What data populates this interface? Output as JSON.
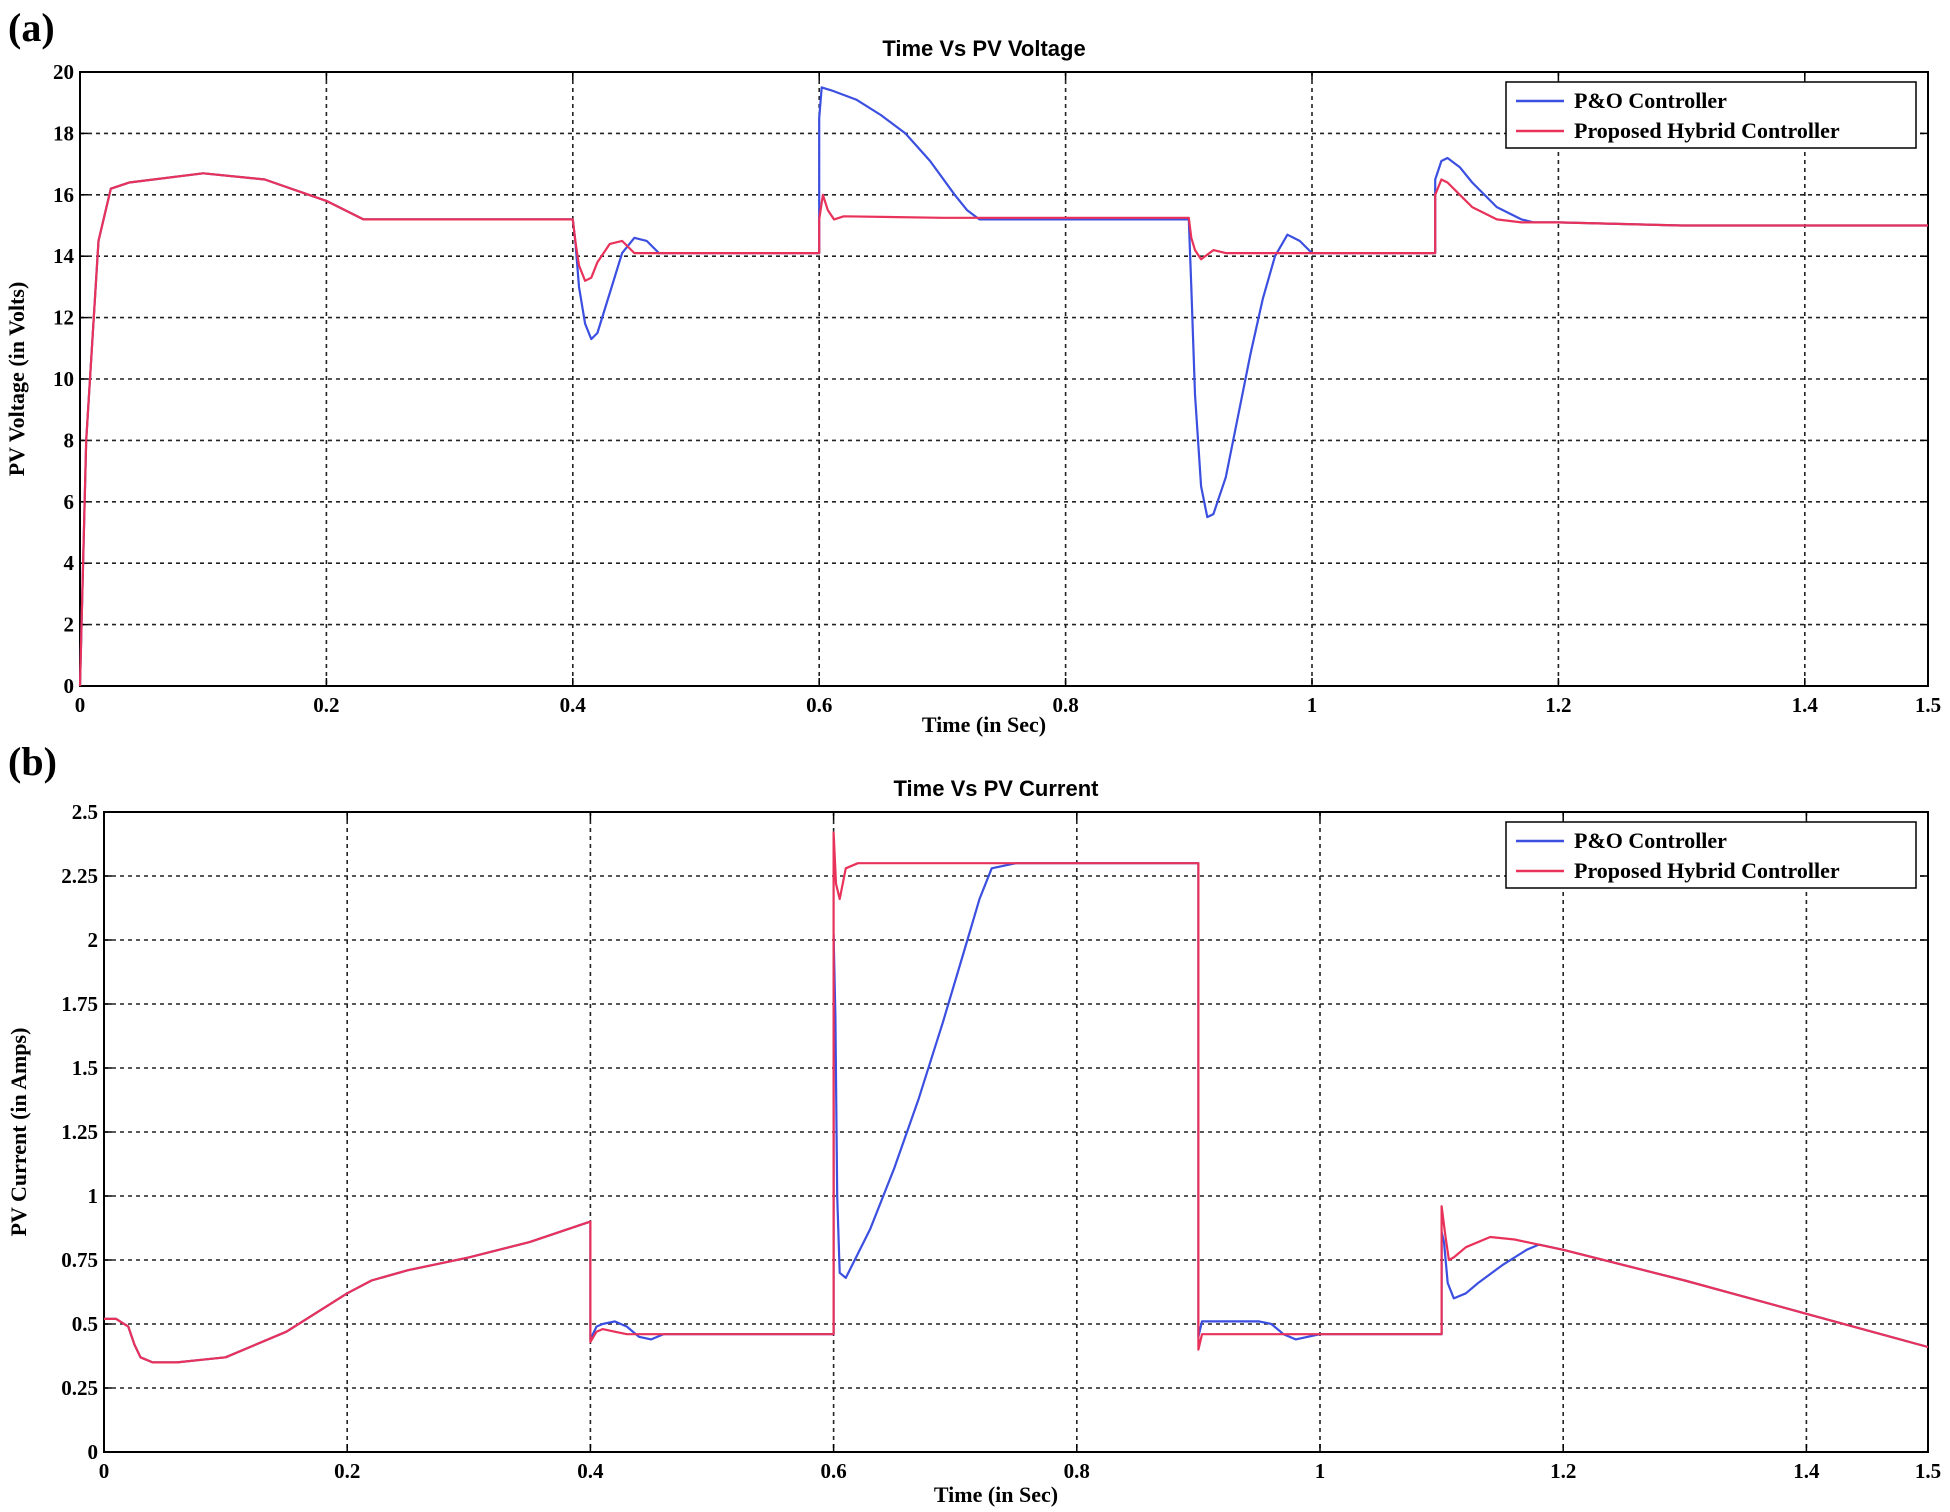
{
  "panels": {
    "a": "(a)",
    "b": "(b)"
  },
  "chart_data": [
    {
      "type": "line",
      "title": "Time Vs PV Voltage",
      "xlabel": "Time (in Sec)",
      "ylabel": "PV Voltage (in Volts)",
      "xlim": [
        0,
        1.5
      ],
      "ylim": [
        0,
        20
      ],
      "xticks": [
        0,
        0.2,
        0.4,
        0.6,
        0.8,
        1,
        1.2,
        1.4,
        1.5
      ],
      "xtick_labels": [
        "0",
        "0.2",
        "0.4",
        "0.6",
        "0.8",
        "1",
        "1.2",
        "1.4",
        "1.5"
      ],
      "yticks": [
        0,
        2,
        4,
        6,
        8,
        10,
        12,
        14,
        16,
        18,
        20
      ],
      "ytick_labels": [
        "0",
        "2",
        "4",
        "6",
        "8",
        "10",
        "12",
        "14",
        "16",
        "18",
        "20"
      ],
      "grid": true,
      "legend": "top-right",
      "series": [
        {
          "name": "P&O Controller",
          "color": "#3b4fe0",
          "x": [
            0,
            0.005,
            0.015,
            0.025,
            0.04,
            0.1,
            0.15,
            0.2,
            0.23,
            0.3,
            0.4,
            0.402,
            0.405,
            0.41,
            0.415,
            0.42,
            0.43,
            0.44,
            0.45,
            0.46,
            0.47,
            0.5,
            0.55,
            0.6,
            0.6,
            0.602,
            0.61,
            0.63,
            0.65,
            0.67,
            0.69,
            0.71,
            0.72,
            0.73,
            0.8,
            0.9,
            0.902,
            0.905,
            0.91,
            0.915,
            0.92,
            0.93,
            0.94,
            0.95,
            0.96,
            0.97,
            0.98,
            0.99,
            1.0,
            1.05,
            1.1,
            1.1,
            1.105,
            1.11,
            1.12,
            1.13,
            1.15,
            1.17,
            1.18,
            1.2,
            1.3,
            1.4,
            1.5
          ],
          "y": [
            0,
            8,
            14.5,
            16.2,
            16.4,
            16.7,
            16.5,
            15.8,
            15.2,
            15.2,
            15.2,
            14.5,
            13,
            11.8,
            11.3,
            11.5,
            12.8,
            14.1,
            14.6,
            14.5,
            14.1,
            14.1,
            14.1,
            14.1,
            18.5,
            19.5,
            19.4,
            19.1,
            18.6,
            18.0,
            17.1,
            16.0,
            15.5,
            15.2,
            15.2,
            15.2,
            13,
            9.5,
            6.5,
            5.5,
            5.6,
            6.8,
            8.8,
            10.8,
            12.6,
            14.0,
            14.7,
            14.5,
            14.1,
            14.1,
            14.1,
            16.5,
            17.1,
            17.2,
            16.9,
            16.4,
            15.6,
            15.2,
            15.1,
            15.1,
            15.0,
            15.0,
            15.0
          ]
        },
        {
          "name": "Proposed Hybrid Controller",
          "color": "#e8325a",
          "x": [
            0,
            0.005,
            0.015,
            0.025,
            0.04,
            0.1,
            0.15,
            0.2,
            0.23,
            0.3,
            0.4,
            0.402,
            0.405,
            0.41,
            0.415,
            0.42,
            0.43,
            0.44,
            0.45,
            0.47,
            0.5,
            0.55,
            0.6,
            0.6,
            0.603,
            0.607,
            0.612,
            0.62,
            0.7,
            0.8,
            0.9,
            0.902,
            0.905,
            0.91,
            0.92,
            0.93,
            0.95,
            1.0,
            1.05,
            1.1,
            1.1,
            1.105,
            1.11,
            1.12,
            1.13,
            1.15,
            1.17,
            1.2,
            1.3,
            1.4,
            1.5
          ],
          "y": [
            0,
            8,
            14.5,
            16.2,
            16.4,
            16.7,
            16.5,
            15.8,
            15.2,
            15.2,
            15.2,
            14.5,
            13.7,
            13.2,
            13.3,
            13.8,
            14.4,
            14.5,
            14.1,
            14.1,
            14.1,
            14.1,
            14.1,
            15.2,
            16.0,
            15.5,
            15.2,
            15.3,
            15.25,
            15.25,
            15.25,
            14.6,
            14.2,
            13.9,
            14.2,
            14.1,
            14.1,
            14.1,
            14.1,
            14.1,
            16.0,
            16.5,
            16.4,
            16.0,
            15.6,
            15.2,
            15.1,
            15.1,
            15.0,
            15.0,
            15.0
          ]
        }
      ]
    },
    {
      "type": "line",
      "title": "Time Vs PV Current",
      "xlabel": "Time (in Sec)",
      "ylabel": "PV Current (in Amps)",
      "xlim": [
        0,
        1.5
      ],
      "ylim": [
        0,
        2.5
      ],
      "xticks": [
        0,
        0.2,
        0.4,
        0.6,
        0.8,
        1,
        1.2,
        1.4,
        1.5
      ],
      "xtick_labels": [
        "0",
        "0.2",
        "0.4",
        "0.6",
        "0.8",
        "1",
        "1.2",
        "1.4",
        "1.5"
      ],
      "yticks": [
        0,
        0.25,
        0.5,
        0.75,
        1,
        1.25,
        1.5,
        1.75,
        2,
        2.25,
        2.5
      ],
      "ytick_labels": [
        "0",
        "0.25",
        "0.5",
        "0.75",
        "1",
        "1.25",
        "1.5",
        "1.75",
        "2",
        "2.25",
        "2.5"
      ],
      "grid": true,
      "legend": "top-right",
      "series": [
        {
          "name": "P&O Controller",
          "color": "#3b4fe0",
          "x": [
            0,
            0.01,
            0.02,
            0.025,
            0.03,
            0.04,
            0.06,
            0.08,
            0.1,
            0.15,
            0.2,
            0.22,
            0.25,
            0.3,
            0.35,
            0.4,
            0.4,
            0.405,
            0.41,
            0.42,
            0.43,
            0.44,
            0.45,
            0.46,
            0.47,
            0.5,
            0.55,
            0.6,
            0.6,
            0.6015,
            0.603,
            0.605,
            0.61,
            0.63,
            0.65,
            0.67,
            0.69,
            0.71,
            0.72,
            0.73,
            0.75,
            0.8,
            0.9,
            0.9,
            0.903,
            0.91,
            0.93,
            0.95,
            0.96,
            0.97,
            0.98,
            0.99,
            1.0,
            1.05,
            1.1,
            1.1,
            1.102,
            1.105,
            1.11,
            1.12,
            1.13,
            1.15,
            1.17,
            1.18,
            1.2,
            1.3,
            1.4,
            1.5
          ],
          "y": [
            0.52,
            0.52,
            0.49,
            0.42,
            0.37,
            0.35,
            0.35,
            0.36,
            0.37,
            0.47,
            0.62,
            0.67,
            0.71,
            0.76,
            0.82,
            0.9,
            0.44,
            0.49,
            0.5,
            0.51,
            0.49,
            0.45,
            0.44,
            0.46,
            0.46,
            0.46,
            0.46,
            0.46,
            2.02,
            1.7,
            1.0,
            0.7,
            0.68,
            0.87,
            1.11,
            1.38,
            1.68,
            2.0,
            2.16,
            2.28,
            2.3,
            2.3,
            2.3,
            0.45,
            0.51,
            0.51,
            0.51,
            0.51,
            0.5,
            0.46,
            0.44,
            0.45,
            0.46,
            0.46,
            0.46,
            0.86,
            0.82,
            0.66,
            0.6,
            0.62,
            0.66,
            0.73,
            0.79,
            0.81,
            0.79,
            0.67,
            0.54,
            0.41
          ]
        },
        {
          "name": "Proposed Hybrid Controller",
          "color": "#e8325a",
          "x": [
            0,
            0.01,
            0.02,
            0.025,
            0.03,
            0.04,
            0.06,
            0.08,
            0.1,
            0.15,
            0.2,
            0.22,
            0.25,
            0.3,
            0.35,
            0.4,
            0.4,
            0.405,
            0.41,
            0.42,
            0.43,
            0.44,
            0.45,
            0.5,
            0.55,
            0.6,
            0.6,
            0.602,
            0.605,
            0.61,
            0.62,
            0.7,
            0.8,
            0.9,
            0.9,
            0.903,
            0.91,
            0.92,
            0.95,
            1.0,
            1.05,
            1.1,
            1.1,
            1.103,
            1.106,
            1.11,
            1.12,
            1.14,
            1.16,
            1.2,
            1.3,
            1.4,
            1.5
          ],
          "y": [
            0.52,
            0.52,
            0.49,
            0.42,
            0.37,
            0.35,
            0.35,
            0.36,
            0.37,
            0.47,
            0.62,
            0.67,
            0.71,
            0.76,
            0.82,
            0.9,
            0.43,
            0.47,
            0.48,
            0.47,
            0.46,
            0.46,
            0.46,
            0.46,
            0.46,
            0.46,
            2.42,
            2.22,
            2.16,
            2.28,
            2.3,
            2.3,
            2.3,
            2.3,
            0.4,
            0.46,
            0.46,
            0.46,
            0.46,
            0.46,
            0.46,
            0.46,
            0.96,
            0.85,
            0.75,
            0.76,
            0.8,
            0.84,
            0.83,
            0.79,
            0.67,
            0.54,
            0.41
          ]
        }
      ]
    }
  ]
}
